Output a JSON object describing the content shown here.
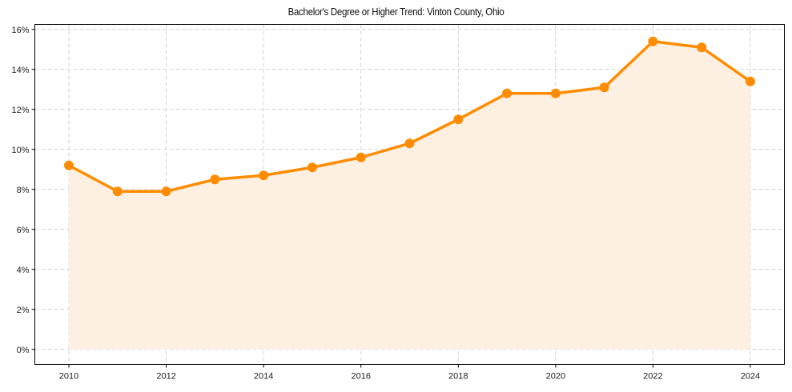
{
  "chart_data": {
    "type": "line",
    "title": "Bachelor's Degree or Higher Trend: Vinton County, Ohio",
    "xlabel": "",
    "ylabel": "",
    "x": [
      2010,
      2011,
      2012,
      2013,
      2014,
      2015,
      2016,
      2017,
      2018,
      2019,
      2020,
      2021,
      2022,
      2023,
      2024
    ],
    "series": [
      {
        "name": "Bachelor's Degree or Higher",
        "values": [
          9.2,
          7.9,
          7.9,
          8.5,
          8.7,
          9.1,
          9.6,
          10.3,
          11.5,
          12.8,
          12.8,
          13.1,
          15.4,
          15.1,
          13.4
        ],
        "color": "#ff8c00",
        "fill": "#fdf0e2"
      }
    ],
    "xticks": [
      2010,
      2012,
      2014,
      2016,
      2018,
      2020,
      2022,
      2024
    ],
    "yticks": [
      0,
      2,
      4,
      6,
      8,
      10,
      12,
      14,
      16
    ],
    "ytick_labels": [
      "0%",
      "2%",
      "4%",
      "6%",
      "8%",
      "10%",
      "12%",
      "14%",
      "16%"
    ],
    "xlim": [
      2009.3,
      2024.7
    ],
    "ylim": [
      -0.75,
      16.25
    ],
    "grid": true,
    "legend": null
  }
}
